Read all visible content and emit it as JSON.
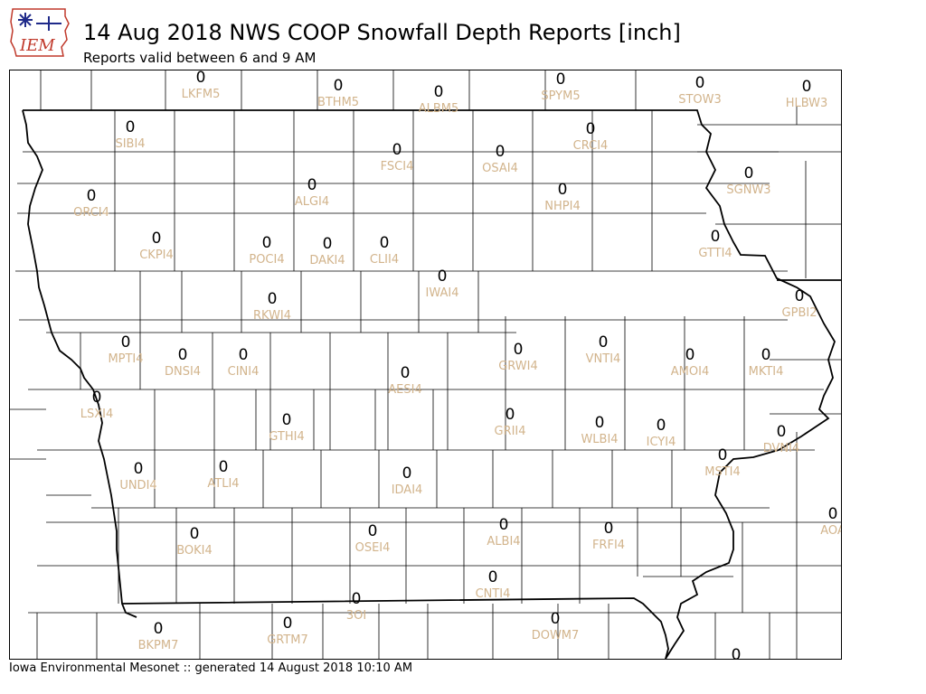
{
  "header": {
    "logo_text": "IEM",
    "title": "14 Aug 2018 NWS COOP Snowfall Depth Reports [inch]",
    "subtitle": "Reports valid between 6 and 9 AM"
  },
  "footer": {
    "text": "Iowa Environmental Mesonet :: generated 14 August 2018 10:10 AM"
  },
  "colors": {
    "value": "#000000",
    "station_id": "#d2b48c",
    "county_line": "#000000",
    "logo_blue": "#1f2a8a",
    "logo_red": "#c0392b"
  },
  "stations": [
    {
      "id": "LKFM5",
      "value": "0"
    },
    {
      "id": "BTHM5",
      "value": "0"
    },
    {
      "id": "ALBM5",
      "value": "0"
    },
    {
      "id": "SPYM5",
      "value": "0"
    },
    {
      "id": "STOW3",
      "value": "0"
    },
    {
      "id": "HLBW3",
      "value": "0"
    },
    {
      "id": "SIBI4",
      "value": "0"
    },
    {
      "id": "FSCI4",
      "value": "0"
    },
    {
      "id": "OSAI4",
      "value": "0"
    },
    {
      "id": "CRCI4",
      "value": "0"
    },
    {
      "id": "ORCI4",
      "value": "0"
    },
    {
      "id": "ALGI4",
      "value": "0"
    },
    {
      "id": "NHPI4",
      "value": "0"
    },
    {
      "id": "SGNW3",
      "value": "0"
    },
    {
      "id": "CKPI4",
      "value": "0"
    },
    {
      "id": "POCI4",
      "value": "0"
    },
    {
      "id": "DAKI4",
      "value": "0"
    },
    {
      "id": "CLII4",
      "value": "0"
    },
    {
      "id": "GTTI4",
      "value": "0"
    },
    {
      "id": "IWAI4",
      "value": "0"
    },
    {
      "id": "RKWI4",
      "value": "0"
    },
    {
      "id": "GPBI2",
      "value": "0"
    },
    {
      "id": "MPTI4",
      "value": "0"
    },
    {
      "id": "DNSI4",
      "value": "0"
    },
    {
      "id": "CINI4",
      "value": "0"
    },
    {
      "id": "GRWI4",
      "value": "0"
    },
    {
      "id": "VNTI4",
      "value": "0"
    },
    {
      "id": "AMOI4",
      "value": "0"
    },
    {
      "id": "MKTI4",
      "value": "0"
    },
    {
      "id": "AESI4",
      "value": "0"
    },
    {
      "id": "LSXI4",
      "value": "0"
    },
    {
      "id": "GTHI4",
      "value": "0"
    },
    {
      "id": "GRII4",
      "value": "0"
    },
    {
      "id": "WLBI4",
      "value": "0"
    },
    {
      "id": "ICYI4",
      "value": "0"
    },
    {
      "id": "DVNI4",
      "value": "0"
    },
    {
      "id": "UNDI4",
      "value": "0"
    },
    {
      "id": "ATLI4",
      "value": "0"
    },
    {
      "id": "IDAI4",
      "value": "0"
    },
    {
      "id": "MSTI4",
      "value": "0"
    },
    {
      "id": "AOA",
      "value": "0"
    },
    {
      "id": "BOKI4",
      "value": "0"
    },
    {
      "id": "OSEI4",
      "value": "0"
    },
    {
      "id": "ALBI4",
      "value": "0"
    },
    {
      "id": "FRFI4",
      "value": "0"
    },
    {
      "id": "CNTI4",
      "value": "0"
    },
    {
      "id": "3OI",
      "value": "0"
    },
    {
      "id": "DOWM7",
      "value": "0"
    },
    {
      "id": "BKPM7",
      "value": "0"
    },
    {
      "id": "GRTM7",
      "value": "0"
    },
    {
      "id": "",
      "value": "0"
    }
  ]
}
